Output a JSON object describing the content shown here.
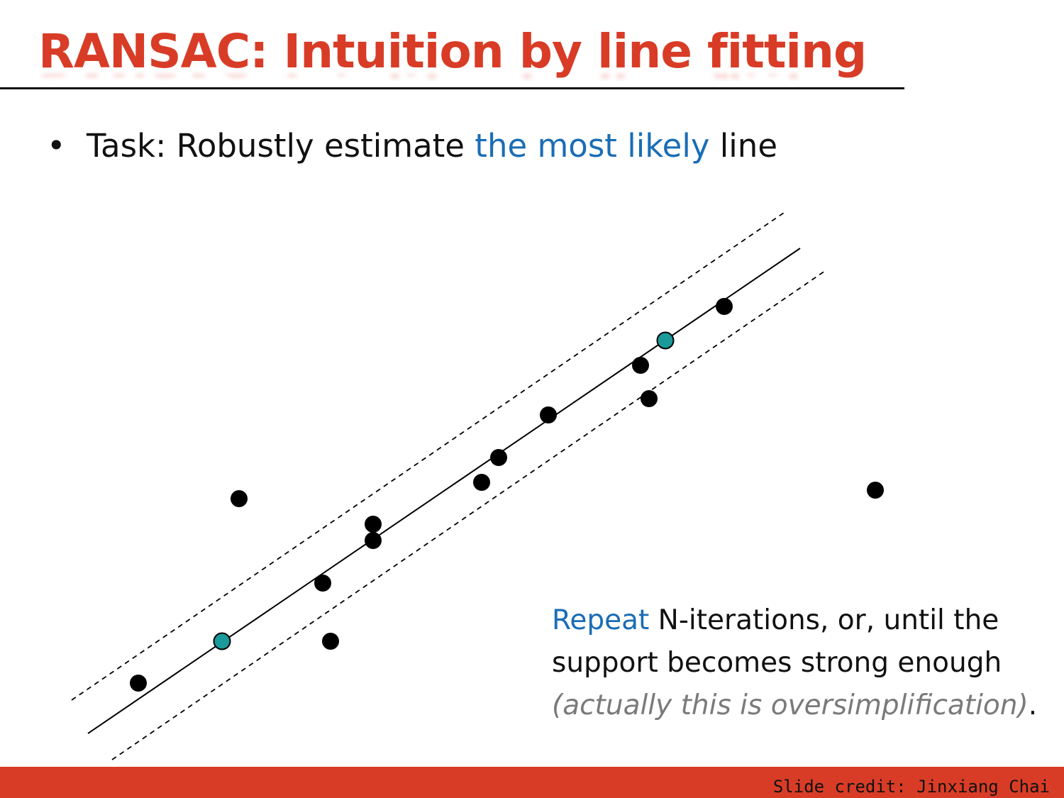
{
  "slide": {
    "title": "RANSAC: Intuition by line fitting",
    "bullet": {
      "marker": "•",
      "prefix": "Task: Robustly estimate ",
      "highlight": "the most likely",
      "suffix": " line"
    },
    "caption": {
      "highlight": "Repeat",
      "text1": " N-iterations, or, until the support becomes strong enough ",
      "aside": "(actually this is oversimplification)",
      "end": "."
    },
    "credit": "Slide credit: Jinxiang Chai"
  },
  "colors": {
    "title": "#d83c26",
    "accent": "#1a6db5",
    "footer": "#d83c26",
    "sample_point": "#1a9a9a",
    "data_point": "#000000",
    "aside_text": "#7a7a7a"
  },
  "diagram": {
    "fit_line": "solid",
    "threshold_band": "dashed",
    "points": [
      {
        "kind": "sample"
      },
      {
        "kind": "sample"
      },
      {
        "kind": "data"
      },
      {
        "kind": "data"
      },
      {
        "kind": "data"
      },
      {
        "kind": "data"
      },
      {
        "kind": "data"
      },
      {
        "kind": "data"
      },
      {
        "kind": "data"
      },
      {
        "kind": "data"
      },
      {
        "kind": "data"
      },
      {
        "kind": "data"
      },
      {
        "kind": "data"
      },
      {
        "kind": "data"
      },
      {
        "kind": "data"
      },
      {
        "kind": "data"
      }
    ]
  }
}
